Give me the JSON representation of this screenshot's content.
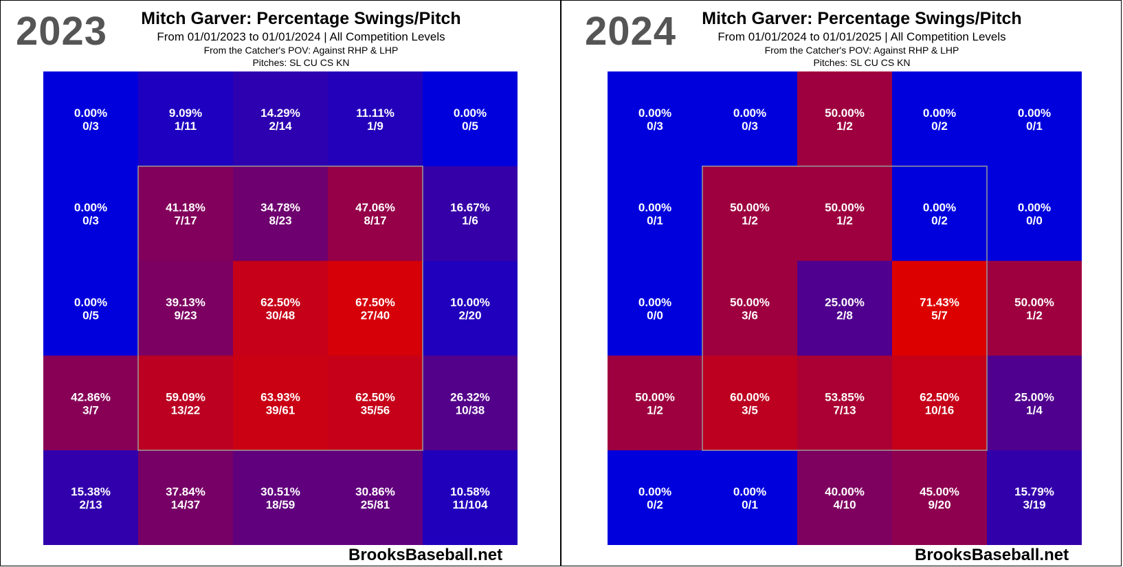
{
  "panels": [
    {
      "year_label": "2023",
      "title": "Mitch Garver: Percentage Swings/Pitch",
      "subtitle": "From 01/01/2023 to 01/01/2024 | All Competition Levels",
      "pov": "From the Catcher's POV:   Against RHP & LHP",
      "pitches": "Pitches:  SL  CU  CS  KN",
      "footer": "BrooksBaseball.net"
    },
    {
      "year_label": "2024",
      "title": "Mitch Garver: Percentage Swings/Pitch",
      "subtitle": "From 01/01/2024 to 01/01/2025 | All Competition Levels",
      "pov": "From the Catcher's POV:   Against RHP & LHP",
      "pitches": "Pitches:  SL  CU  CS  KN",
      "footer": "BrooksBaseball.net"
    }
  ],
  "colors": {
    "low": "#0000dd",
    "high": "#dd0000",
    "zone_outline": "#999999"
  },
  "chart_data": [
    {
      "type": "heatmap",
      "title": "Mitch Garver: Percentage Swings/Pitch",
      "rows": 5,
      "cols": 5,
      "strike_zone": "inner 3x3",
      "cells": [
        [
          {
            "pct": "0.00%",
            "count": "0/3",
            "value": 0.0
          },
          {
            "pct": "9.09%",
            "count": "1/11",
            "value": 9.09
          },
          {
            "pct": "14.29%",
            "count": "2/14",
            "value": 14.29
          },
          {
            "pct": "11.11%",
            "count": "1/9",
            "value": 11.11
          },
          {
            "pct": "0.00%",
            "count": "0/5",
            "value": 0.0
          }
        ],
        [
          {
            "pct": "0.00%",
            "count": "0/3",
            "value": 0.0
          },
          {
            "pct": "41.18%",
            "count": "7/17",
            "value": 41.18
          },
          {
            "pct": "34.78%",
            "count": "8/23",
            "value": 34.78
          },
          {
            "pct": "47.06%",
            "count": "8/17",
            "value": 47.06
          },
          {
            "pct": "16.67%",
            "count": "1/6",
            "value": 16.67
          }
        ],
        [
          {
            "pct": "0.00%",
            "count": "0/5",
            "value": 0.0
          },
          {
            "pct": "39.13%",
            "count": "9/23",
            "value": 39.13
          },
          {
            "pct": "62.50%",
            "count": "30/48",
            "value": 62.5
          },
          {
            "pct": "67.50%",
            "count": "27/40",
            "value": 67.5
          },
          {
            "pct": "10.00%",
            "count": "2/20",
            "value": 10.0
          }
        ],
        [
          {
            "pct": "42.86%",
            "count": "3/7",
            "value": 42.86
          },
          {
            "pct": "59.09%",
            "count": "13/22",
            "value": 59.09
          },
          {
            "pct": "63.93%",
            "count": "39/61",
            "value": 63.93
          },
          {
            "pct": "62.50%",
            "count": "35/56",
            "value": 62.5
          },
          {
            "pct": "26.32%",
            "count": "10/38",
            "value": 26.32
          }
        ],
        [
          {
            "pct": "15.38%",
            "count": "2/13",
            "value": 15.38
          },
          {
            "pct": "37.84%",
            "count": "14/37",
            "value": 37.84
          },
          {
            "pct": "30.51%",
            "count": "18/59",
            "value": 30.51
          },
          {
            "pct": "30.86%",
            "count": "25/81",
            "value": 30.86
          },
          {
            "pct": "10.58%",
            "count": "11/104",
            "value": 10.58
          }
        ]
      ]
    },
    {
      "type": "heatmap",
      "title": "Mitch Garver: Percentage Swings/Pitch",
      "rows": 5,
      "cols": 5,
      "strike_zone": "inner 3x3",
      "cells": [
        [
          {
            "pct": "0.00%",
            "count": "0/3",
            "value": 0.0
          },
          {
            "pct": "0.00%",
            "count": "0/3",
            "value": 0.0
          },
          {
            "pct": "50.00%",
            "count": "1/2",
            "value": 50.0
          },
          {
            "pct": "0.00%",
            "count": "0/2",
            "value": 0.0
          },
          {
            "pct": "0.00%",
            "count": "0/1",
            "value": 0.0
          }
        ],
        [
          {
            "pct": "0.00%",
            "count": "0/1",
            "value": 0.0
          },
          {
            "pct": "50.00%",
            "count": "1/2",
            "value": 50.0
          },
          {
            "pct": "50.00%",
            "count": "1/2",
            "value": 50.0
          },
          {
            "pct": "0.00%",
            "count": "0/2",
            "value": 0.0
          },
          {
            "pct": "0.00%",
            "count": "0/0",
            "value": 0.0
          }
        ],
        [
          {
            "pct": "0.00%",
            "count": "0/0",
            "value": 0.0
          },
          {
            "pct": "50.00%",
            "count": "3/6",
            "value": 50.0
          },
          {
            "pct": "25.00%",
            "count": "2/8",
            "value": 25.0
          },
          {
            "pct": "71.43%",
            "count": "5/7",
            "value": 71.43
          },
          {
            "pct": "50.00%",
            "count": "1/2",
            "value": 50.0
          }
        ],
        [
          {
            "pct": "50.00%",
            "count": "1/2",
            "value": 50.0
          },
          {
            "pct": "60.00%",
            "count": "3/5",
            "value": 60.0
          },
          {
            "pct": "53.85%",
            "count": "7/13",
            "value": 53.85
          },
          {
            "pct": "62.50%",
            "count": "10/16",
            "value": 62.5
          },
          {
            "pct": "25.00%",
            "count": "1/4",
            "value": 25.0
          }
        ],
        [
          {
            "pct": "0.00%",
            "count": "0/2",
            "value": 0.0
          },
          {
            "pct": "0.00%",
            "count": "0/1",
            "value": 0.0
          },
          {
            "pct": "40.00%",
            "count": "4/10",
            "value": 40.0
          },
          {
            "pct": "45.00%",
            "count": "9/20",
            "value": 45.0
          },
          {
            "pct": "15.79%",
            "count": "3/19",
            "value": 15.79
          }
        ]
      ]
    }
  ]
}
